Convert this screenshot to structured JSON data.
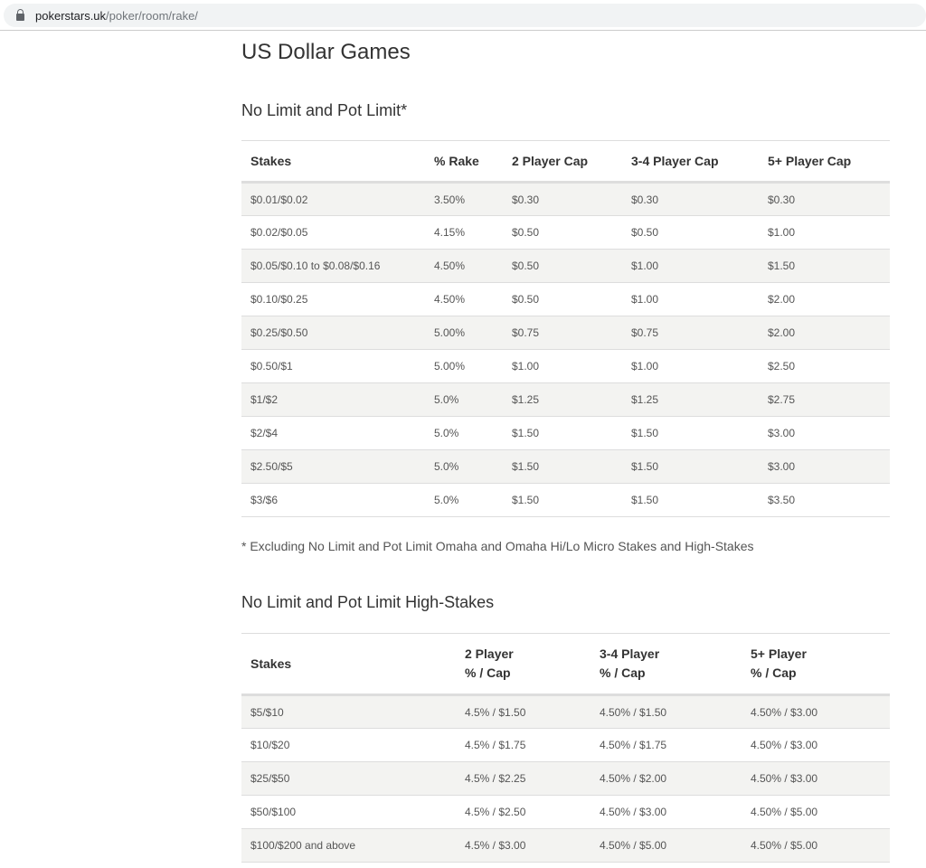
{
  "browser": {
    "url_host": "pokerstars.uk",
    "url_path": "/poker/room/rake/"
  },
  "page_title": "US Dollar Games",
  "table1": {
    "title": "No Limit and Pot Limit*",
    "headers": [
      "Stakes",
      "% Rake",
      "2 Player Cap",
      "3-4 Player Cap",
      "5+ Player Cap"
    ],
    "rows": [
      [
        "$0.01/$0.02",
        "3.50%",
        "$0.30",
        "$0.30",
        "$0.30"
      ],
      [
        "$0.02/$0.05",
        "4.15%",
        "$0.50",
        "$0.50",
        "$1.00"
      ],
      [
        "$0.05/$0.10 to $0.08/$0.16",
        "4.50%",
        "$0.50",
        "$1.00",
        "$1.50"
      ],
      [
        "$0.10/$0.25",
        "4.50%",
        "$0.50",
        "$1.00",
        "$2.00"
      ],
      [
        "$0.25/$0.50",
        "5.00%",
        "$0.75",
        "$0.75",
        "$2.00"
      ],
      [
        "$0.50/$1",
        "5.00%",
        "$1.00",
        "$1.00",
        "$2.50"
      ],
      [
        "$1/$2",
        "5.0%",
        "$1.25",
        "$1.25",
        "$2.75"
      ],
      [
        "$2/$4",
        "5.0%",
        "$1.50",
        "$1.50",
        "$3.00"
      ],
      [
        "$2.50/$5",
        "5.0%",
        "$1.50",
        "$1.50",
        "$3.00"
      ],
      [
        "$3/$6",
        "5.0%",
        "$1.50",
        "$1.50",
        "$3.50"
      ]
    ],
    "footnote": "* Excluding No Limit and Pot Limit Omaha and Omaha Hi/Lo Micro Stakes and High-Stakes"
  },
  "table2": {
    "title": "No Limit and Pot Limit High-Stakes",
    "headers": [
      [
        "Stakes"
      ],
      [
        "2 Player",
        "% / Cap"
      ],
      [
        "3-4 Player",
        "% / Cap"
      ],
      [
        "5+ Player",
        "% / Cap"
      ]
    ],
    "rows": [
      [
        "$5/$10",
        "4.5% / $1.50",
        "4.50% / $1.50",
        "4.50% / $3.00"
      ],
      [
        "$10/$20",
        "4.5% / $1.75",
        "4.50% / $1.75",
        "4.50% / $3.00"
      ],
      [
        "$25/$50",
        "4.5% / $2.25",
        "4.50% / $2.00",
        "4.50% / $3.00"
      ],
      [
        "$50/$100",
        "4.5% / $2.50",
        "4.50% / $3.00",
        "4.50% / $5.00"
      ],
      [
        "$100/$200 and above",
        "4.5% / $3.00",
        "4.50% / $5.00",
        "4.50% / $5.00"
      ]
    ]
  }
}
